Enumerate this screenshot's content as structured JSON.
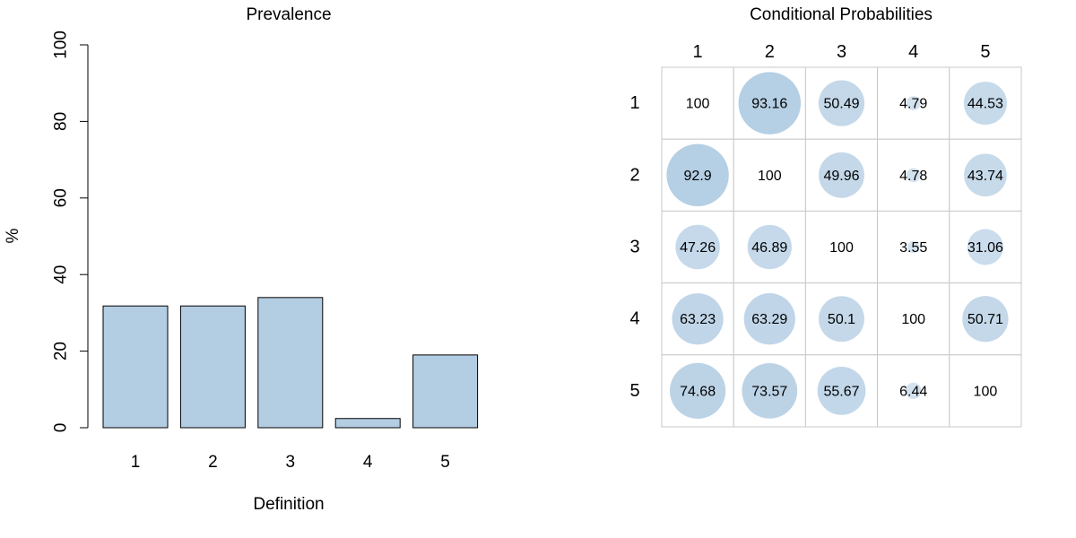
{
  "chart_data": [
    {
      "type": "bar",
      "title": "Prevalence",
      "xlabel": "Definition",
      "ylabel": "%",
      "categories": [
        "1",
        "2",
        "3",
        "4",
        "5"
      ],
      "values": [
        31.8,
        31.8,
        34.0,
        2.4,
        19.0
      ],
      "ylim": [
        0,
        100
      ],
      "yticks": [
        "0",
        "20",
        "40",
        "60",
        "80",
        "100"
      ],
      "bar_color": "#b3cde3",
      "grid": false
    },
    {
      "type": "heatmap",
      "title": "Conditional Probabilities",
      "row_labels": [
        "1",
        "2",
        "3",
        "4",
        "5"
      ],
      "col_labels": [
        "1",
        "2",
        "3",
        "4",
        "5"
      ],
      "matrix": [
        [
          "100",
          "93.16",
          "50.49",
          "4.79",
          "44.53"
        ],
        [
          "92.9",
          "100",
          "49.96",
          "4.78",
          "43.74"
        ],
        [
          "47.26",
          "46.89",
          "100",
          "3.55",
          "31.06"
        ],
        [
          "63.23",
          "63.29",
          "50.1",
          "100",
          "50.71"
        ],
        [
          "74.68",
          "73.57",
          "55.67",
          "6.44",
          "100"
        ]
      ],
      "circle_color": "#b3cde3",
      "grid_color": "#c8c8c8"
    }
  ]
}
